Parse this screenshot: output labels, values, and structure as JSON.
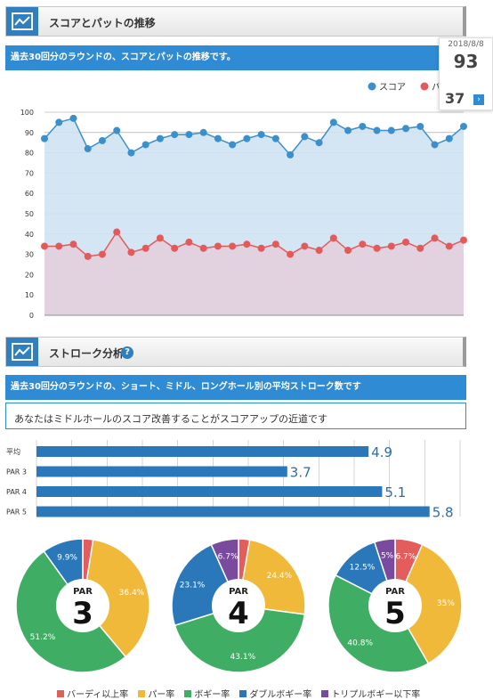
{
  "section1": {
    "title": "スコアとパットの推移",
    "desc": "過去30回分のラウンドの、スコアとパットの推移です。"
  },
  "section2": {
    "title": "ストローク分析",
    "desc": "過去30回分のラウンドの、ショート、ミドル、ロングホール別の平均ストローク数です",
    "advice": "あなたはミドルホールのスコア改善することがスコアアップの近道です"
  },
  "tooltip": {
    "date": "2018/8/8",
    "score": "93",
    "putt": "37",
    "next_icon": "chevron-right-icon"
  },
  "colors": {
    "score": "#3b8fcb",
    "putt": "#e45a5a",
    "bar": "#2a78b9",
    "birdie": "#e45d5d",
    "par": "#f1b93a",
    "bogey": "#3fad63",
    "double": "#2a78b9",
    "triple": "#7a4a9e"
  },
  "chart_data": [
    {
      "type": "line",
      "ylim": [
        0,
        100
      ],
      "yticks": [
        0,
        10,
        20,
        30,
        40,
        50,
        60,
        70,
        80,
        90,
        100
      ],
      "grid": true,
      "legend_position": "top-right",
      "series": [
        {
          "name": "スコア",
          "values": [
            87,
            95,
            97,
            82,
            86,
            91,
            80,
            84,
            87,
            89,
            89,
            90,
            87,
            84,
            87,
            89,
            87,
            79,
            88,
            85,
            95,
            91,
            93,
            91,
            91,
            92,
            93,
            84,
            87,
            93
          ]
        },
        {
          "name": "パ",
          "values": [
            34,
            34,
            35,
            29,
            30,
            41,
            31,
            33,
            38,
            33,
            36,
            33,
            34,
            34,
            35,
            33,
            35,
            30,
            34,
            32,
            38,
            32,
            35,
            33,
            34,
            36,
            33,
            38,
            34,
            37
          ]
        }
      ]
    },
    {
      "type": "bar",
      "orientation": "horizontal",
      "categories": [
        "平均",
        "PAR 3",
        "PAR 4",
        "PAR 5"
      ],
      "values": [
        4.9,
        3.7,
        5.1,
        5.8
      ],
      "labels": [
        "4.9",
        "3.7",
        "5.1",
        "5.8"
      ],
      "xlim": [
        0,
        6.25
      ],
      "grid": true
    },
    {
      "type": "pie",
      "center_label": {
        "small": "PAR",
        "big": "3"
      },
      "slices": [
        {
          "name": "バーディ以上率",
          "value": 2.5,
          "label": ""
        },
        {
          "name": "パー率",
          "value": 36.4,
          "label": "36.4%"
        },
        {
          "name": "ボギー率",
          "value": 51.2,
          "label": "51.2%"
        },
        {
          "name": "ダブルボギー率",
          "value": 9.9,
          "label": "9.9%"
        },
        {
          "name": "トリプルボギー以下率",
          "value": 0,
          "label": ""
        }
      ]
    },
    {
      "type": "pie",
      "center_label": {
        "small": "PAR",
        "big": "4"
      },
      "slices": [
        {
          "name": "バーディ以上率",
          "value": 2.7,
          "label": ""
        },
        {
          "name": "パー率",
          "value": 24.4,
          "label": "24.4%"
        },
        {
          "name": "ボギー率",
          "value": 43.1,
          "label": "43.1%"
        },
        {
          "name": "ダブルボギー率",
          "value": 23.1,
          "label": "23.1%"
        },
        {
          "name": "トリプルボギー以下率",
          "value": 6.7,
          "label": "6.7%"
        }
      ]
    },
    {
      "type": "pie",
      "center_label": {
        "small": "PAR",
        "big": "5"
      },
      "slices": [
        {
          "name": "バーディ以上率",
          "value": 6.7,
          "label": "6.7%"
        },
        {
          "name": "パー率",
          "value": 35,
          "label": "35%"
        },
        {
          "name": "ボギー率",
          "value": 40.8,
          "label": "40.8%"
        },
        {
          "name": "ダブルボギー率",
          "value": 12.5,
          "label": "12.5%"
        },
        {
          "name": "トリプルボギー以下率",
          "value": 5,
          "label": "5%"
        }
      ]
    }
  ],
  "pie_legend": [
    {
      "label": "バーディ以上率",
      "color": "#e45d5d"
    },
    {
      "label": "パー率",
      "color": "#f1b93a"
    },
    {
      "label": "ボギー率",
      "color": "#3fad63"
    },
    {
      "label": "ダブルボギー率",
      "color": "#2a78b9"
    },
    {
      "label": "トリプルボギー以下率",
      "color": "#7a4a9e"
    }
  ]
}
